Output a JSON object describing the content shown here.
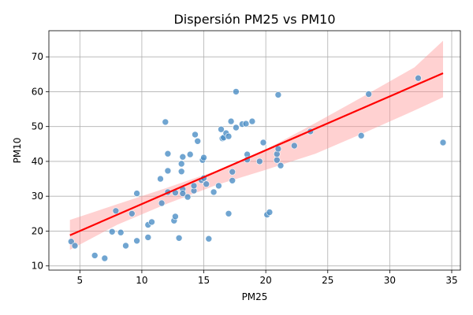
{
  "chart_data": {
    "type": "scatter",
    "title": "Dispersión PM25 vs PM10",
    "xlabel": "PM25",
    "ylabel": "PM10",
    "xlim": [
      2.5,
      35.7
    ],
    "ylim": [
      8.8,
      77.5
    ],
    "xticks": [
      5,
      10,
      15,
      20,
      25,
      30,
      35
    ],
    "yticks": [
      10,
      20,
      30,
      40,
      50,
      60,
      70
    ],
    "grid": true,
    "point_color": "#4c8fc6",
    "regression_color": "#ff0000",
    "band_color": "#ff9999",
    "points": [
      {
        "x": 4.3,
        "y": 17.0
      },
      {
        "x": 4.6,
        "y": 15.8
      },
      {
        "x": 6.2,
        "y": 13.0
      },
      {
        "x": 7.0,
        "y": 12.2
      },
      {
        "x": 7.6,
        "y": 19.8
      },
      {
        "x": 7.9,
        "y": 25.8
      },
      {
        "x": 8.3,
        "y": 19.6
      },
      {
        "x": 8.7,
        "y": 15.8
      },
      {
        "x": 9.2,
        "y": 25.0
      },
      {
        "x": 9.6,
        "y": 17.2
      },
      {
        "x": 9.6,
        "y": 30.8
      },
      {
        "x": 10.5,
        "y": 18.2
      },
      {
        "x": 10.5,
        "y": 21.8
      },
      {
        "x": 10.8,
        "y": 22.6
      },
      {
        "x": 11.5,
        "y": 35.0
      },
      {
        "x": 11.6,
        "y": 28.0
      },
      {
        "x": 11.9,
        "y": 51.3
      },
      {
        "x": 12.1,
        "y": 42.2
      },
      {
        "x": 12.1,
        "y": 37.3
      },
      {
        "x": 12.1,
        "y": 31.2
      },
      {
        "x": 12.6,
        "y": 23.0
      },
      {
        "x": 12.7,
        "y": 24.2
      },
      {
        "x": 12.7,
        "y": 31.0
      },
      {
        "x": 13.0,
        "y": 18.0
      },
      {
        "x": 13.2,
        "y": 39.3
      },
      {
        "x": 13.2,
        "y": 37.1
      },
      {
        "x": 13.3,
        "y": 41.3
      },
      {
        "x": 13.3,
        "y": 32.0
      },
      {
        "x": 13.3,
        "y": 30.8
      },
      {
        "x": 13.7,
        "y": 29.8
      },
      {
        "x": 13.9,
        "y": 42.0
      },
      {
        "x": 14.2,
        "y": 31.6
      },
      {
        "x": 14.2,
        "y": 33.0
      },
      {
        "x": 14.3,
        "y": 47.7
      },
      {
        "x": 14.5,
        "y": 45.8
      },
      {
        "x": 14.8,
        "y": 34.6
      },
      {
        "x": 14.9,
        "y": 40.4
      },
      {
        "x": 15.0,
        "y": 41.1
      },
      {
        "x": 15.0,
        "y": 35.2
      },
      {
        "x": 15.2,
        "y": 33.5
      },
      {
        "x": 15.4,
        "y": 17.8
      },
      {
        "x": 15.8,
        "y": 31.2
      },
      {
        "x": 16.2,
        "y": 33.0
      },
      {
        "x": 16.4,
        "y": 49.2
      },
      {
        "x": 16.5,
        "y": 46.6
      },
      {
        "x": 16.6,
        "y": 46.8
      },
      {
        "x": 16.8,
        "y": 48.1
      },
      {
        "x": 17.0,
        "y": 47.2
      },
      {
        "x": 17.0,
        "y": 25.0
      },
      {
        "x": 17.2,
        "y": 51.5
      },
      {
        "x": 17.3,
        "y": 37.0
      },
      {
        "x": 17.3,
        "y": 34.5
      },
      {
        "x": 17.6,
        "y": 60.0
      },
      {
        "x": 17.6,
        "y": 49.7
      },
      {
        "x": 18.1,
        "y": 50.7
      },
      {
        "x": 18.4,
        "y": 50.8
      },
      {
        "x": 18.5,
        "y": 42.0
      },
      {
        "x": 18.5,
        "y": 40.5
      },
      {
        "x": 18.9,
        "y": 51.5
      },
      {
        "x": 19.5,
        "y": 40.0
      },
      {
        "x": 19.8,
        "y": 45.4
      },
      {
        "x": 20.1,
        "y": 24.7
      },
      {
        "x": 20.3,
        "y": 25.4
      },
      {
        "x": 20.9,
        "y": 40.4
      },
      {
        "x": 20.9,
        "y": 42.1
      },
      {
        "x": 21.0,
        "y": 43.6
      },
      {
        "x": 21.0,
        "y": 59.1
      },
      {
        "x": 21.2,
        "y": 38.8
      },
      {
        "x": 22.3,
        "y": 44.5
      },
      {
        "x": 23.6,
        "y": 48.6
      },
      {
        "x": 27.7,
        "y": 47.4
      },
      {
        "x": 28.3,
        "y": 59.3
      },
      {
        "x": 32.3,
        "y": 63.9
      },
      {
        "x": 34.3,
        "y": 45.4
      }
    ],
    "regression": {
      "x": [
        4.2,
        34.3
      ],
      "y": [
        18.8,
        65.3
      ]
    },
    "confidence_band": {
      "x": [
        4.2,
        8.0,
        12.0,
        16.0,
        20.0,
        24.0,
        28.0,
        32.0,
        34.3
      ],
      "upper": [
        23.2,
        27.7,
        32.4,
        37.3,
        43.4,
        51.0,
        58.9,
        67.0,
        74.6
      ],
      "lower": [
        14.6,
        21.8,
        27.8,
        33.2,
        37.6,
        42.2,
        48.3,
        54.6,
        58.4
      ]
    }
  }
}
